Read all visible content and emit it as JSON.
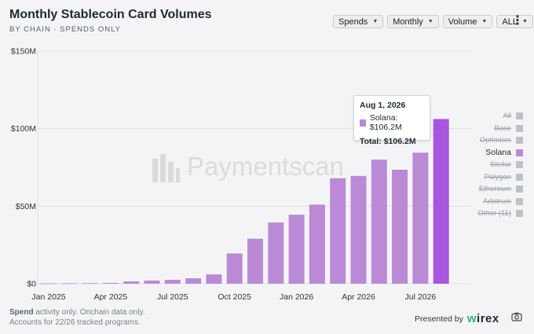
{
  "header": {
    "title": "Monthly Stablecoin Card Volumes",
    "subtitle": "BY CHAIN · SPENDS ONLY"
  },
  "controls": [
    {
      "label": "Spends"
    },
    {
      "label": "Monthly"
    },
    {
      "label": "Volume"
    },
    {
      "label": "ALL"
    }
  ],
  "chart_data": {
    "type": "bar",
    "title": "Monthly Stablecoin Card Volumes",
    "subtitle": "BY CHAIN · SPENDS ONLY",
    "xlabel": "",
    "ylabel": "",
    "ylim": [
      0,
      150
    ],
    "y_unit": "$M",
    "y_ticks": [
      0,
      50,
      100,
      150
    ],
    "y_tick_labels": [
      "$0",
      "$50M",
      "$100M",
      "$150M"
    ],
    "categories": [
      "Jan 2025",
      "Feb 2025",
      "Mar 2025",
      "Apr 2025",
      "May 2025",
      "Jun 2025",
      "Jul 2025",
      "Aug 2025",
      "Sep 2025",
      "Oct 2025",
      "Nov 2025",
      "Dec 2025",
      "Jan 2026",
      "Feb 2026",
      "Mar 2026",
      "Apr 2026",
      "May 2026",
      "Jun 2026",
      "Jul 2026",
      "Aug 2026"
    ],
    "x_tick_labels": [
      {
        "index": 0,
        "label": "Jan 2025"
      },
      {
        "index": 3,
        "label": "Apr 2025"
      },
      {
        "index": 6,
        "label": "Jul 2025"
      },
      {
        "index": 9,
        "label": "Oct 2025"
      },
      {
        "index": 12,
        "label": "Jan 2026"
      },
      {
        "index": 15,
        "label": "Apr 2026"
      },
      {
        "index": 18,
        "label": "Jul 2026"
      }
    ],
    "series": [
      {
        "name": "Solana",
        "color": "#bb8ad6",
        "values": [
          0.2,
          0.3,
          0.4,
          0.5,
          1.5,
          2.0,
          2.5,
          3.5,
          6.0,
          19.5,
          29.0,
          39.5,
          44.5,
          51.0,
          68.0,
          69.5,
          80.0,
          73.5,
          84.5,
          106.2
        ]
      }
    ],
    "highlight_index": 19,
    "highlight_color": "#a855e0",
    "grid": "horizontal",
    "legend_position": "right"
  },
  "legend": [
    {
      "label": "All",
      "active": false
    },
    {
      "label": "Base",
      "active": false
    },
    {
      "label": "Optimism",
      "active": false
    },
    {
      "label": "Solana",
      "active": true,
      "color": "#bb8ad6"
    },
    {
      "label": "Stellar",
      "active": false
    },
    {
      "label": "Polygon",
      "active": false
    },
    {
      "label": "Ethereum",
      "active": false
    },
    {
      "label": "Arbitrum",
      "active": false
    },
    {
      "label": "Other (11)",
      "active": false
    }
  ],
  "tooltip": {
    "date": "Aug 1, 2026",
    "series_line": "Solana: $106.2M",
    "total_line": "Total: $106.2M"
  },
  "watermark": "Paymentscan",
  "footnote": {
    "line1_bold": "Spend",
    "line1_rest": " activity only. Onchain data only.",
    "line2": "Accounts for 22/26 tracked programs."
  },
  "presented_by": {
    "label": "Presented by",
    "brand_w": "w",
    "brand_rest": "irex"
  },
  "icons": {
    "menu": "vertical-dots-icon",
    "camera": "camera-icon",
    "watermark_logo": "paymentscan-logo"
  }
}
